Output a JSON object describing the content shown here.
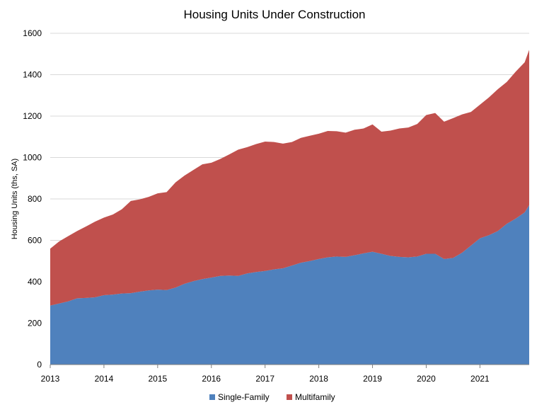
{
  "chart_data": {
    "type": "area",
    "stacked": true,
    "title": "Housing Units Under Construction",
    "xlabel": "",
    "ylabel": "Housing Units (ths, SA)",
    "ylim": [
      0,
      1600
    ],
    "yticks": [
      0,
      200,
      400,
      600,
      800,
      1000,
      1200,
      1400,
      1600
    ],
    "xlim": [
      2013,
      2021.917
    ],
    "xticks": [
      "2013",
      "2014",
      "2015",
      "2016",
      "2017",
      "2018",
      "2019",
      "2020",
      "2021"
    ],
    "grid": true,
    "legend_position": "bottom",
    "x": [
      2013.0,
      2013.167,
      2013.333,
      2013.5,
      2013.667,
      2013.833,
      2014.0,
      2014.167,
      2014.333,
      2014.5,
      2014.667,
      2014.833,
      2015.0,
      2015.167,
      2015.333,
      2015.5,
      2015.667,
      2015.833,
      2016.0,
      2016.167,
      2016.333,
      2016.5,
      2016.667,
      2016.833,
      2017.0,
      2017.167,
      2017.333,
      2017.5,
      2017.667,
      2017.833,
      2018.0,
      2018.167,
      2018.333,
      2018.5,
      2018.667,
      2018.833,
      2019.0,
      2019.167,
      2019.333,
      2019.5,
      2019.667,
      2019.833,
      2020.0,
      2020.167,
      2020.333,
      2020.5,
      2020.667,
      2020.833,
      2021.0,
      2021.167,
      2021.333,
      2021.5,
      2021.667,
      2021.833,
      2021.917
    ],
    "series": [
      {
        "name": "Single-Family",
        "color": "#4f81bd",
        "values": [
          285,
          295,
          305,
          320,
          322,
          325,
          335,
          338,
          343,
          345,
          352,
          358,
          362,
          360,
          372,
          390,
          403,
          413,
          420,
          428,
          430,
          428,
          440,
          447,
          452,
          460,
          465,
          478,
          492,
          500,
          510,
          518,
          522,
          520,
          528,
          537,
          545,
          535,
          525,
          520,
          518,
          522,
          535,
          535,
          510,
          515,
          540,
          575,
          610,
          625,
          645,
          680,
          705,
          735,
          770
        ]
      },
      {
        "name": "Multifamily",
        "color": "#c0504d",
        "values": [
          275,
          300,
          315,
          325,
          345,
          365,
          375,
          387,
          407,
          445,
          446,
          452,
          465,
          473,
          508,
          523,
          537,
          554,
          555,
          565,
          585,
          610,
          610,
          618,
          625,
          615,
          602,
          597,
          603,
          605,
          605,
          610,
          605,
          600,
          606,
          603,
          615,
          590,
          605,
          620,
          627,
          640,
          670,
          680,
          663,
          675,
          668,
          645,
          645,
          665,
          685,
          685,
          710,
          725,
          750
        ]
      }
    ]
  }
}
